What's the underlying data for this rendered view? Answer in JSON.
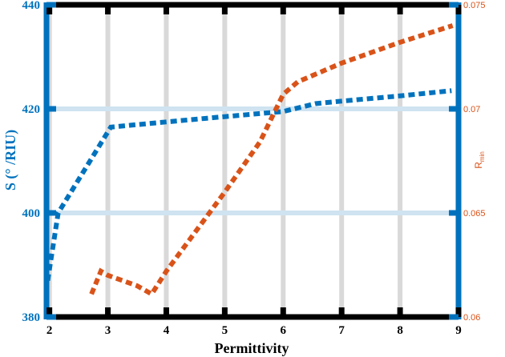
{
  "chart_data": {
    "type": "line",
    "xlabel": "Permittivity",
    "ylabel": "S (° /RIU)",
    "y2label_main": "R",
    "y2label_sub": "min",
    "xlim": [
      1.95,
      9
    ],
    "ylim": [
      380,
      440
    ],
    "y2lim": [
      0.06,
      0.075
    ],
    "xticks": [
      2,
      3,
      4,
      5,
      6,
      7,
      8,
      9
    ],
    "yticks": [
      380,
      400,
      420,
      440
    ],
    "y2ticks": [
      0.06,
      0.065,
      0.07,
      0.075
    ],
    "y2tick_labels": [
      "0.06",
      "0.065",
      "0.07",
      "0.075"
    ],
    "grid": {
      "x": true,
      "y_lines": [
        400,
        420
      ]
    },
    "colors": {
      "left_axis": "#0072BD",
      "right_axis": "#D95319",
      "frame": "#000000",
      "grid_x": "#d9d9d9",
      "grid_y": "#cfe3f1"
    },
    "series": [
      {
        "axis": "left",
        "color": "#0072BD",
        "x": [
          1.97,
          2.15,
          3.05,
          4.0,
          5.0,
          6.0,
          6.55,
          7.0,
          8.0,
          8.88
        ],
        "y": [
          387,
          400,
          416.5,
          417.5,
          418.5,
          419.5,
          421,
          421.5,
          422.5,
          423.5
        ]
      },
      {
        "axis": "right",
        "color": "#D95319",
        "x": [
          2.72,
          2.88,
          3.0,
          3.5,
          3.75,
          4.0,
          5.0,
          5.6,
          6.0,
          6.25,
          7.0,
          8.0,
          8.9
        ],
        "y": [
          0.0611,
          0.0622,
          0.062,
          0.0615,
          0.0611,
          0.0622,
          0.066,
          0.0684,
          0.0707,
          0.0713,
          0.0722,
          0.0732,
          0.074
        ]
      }
    ]
  }
}
